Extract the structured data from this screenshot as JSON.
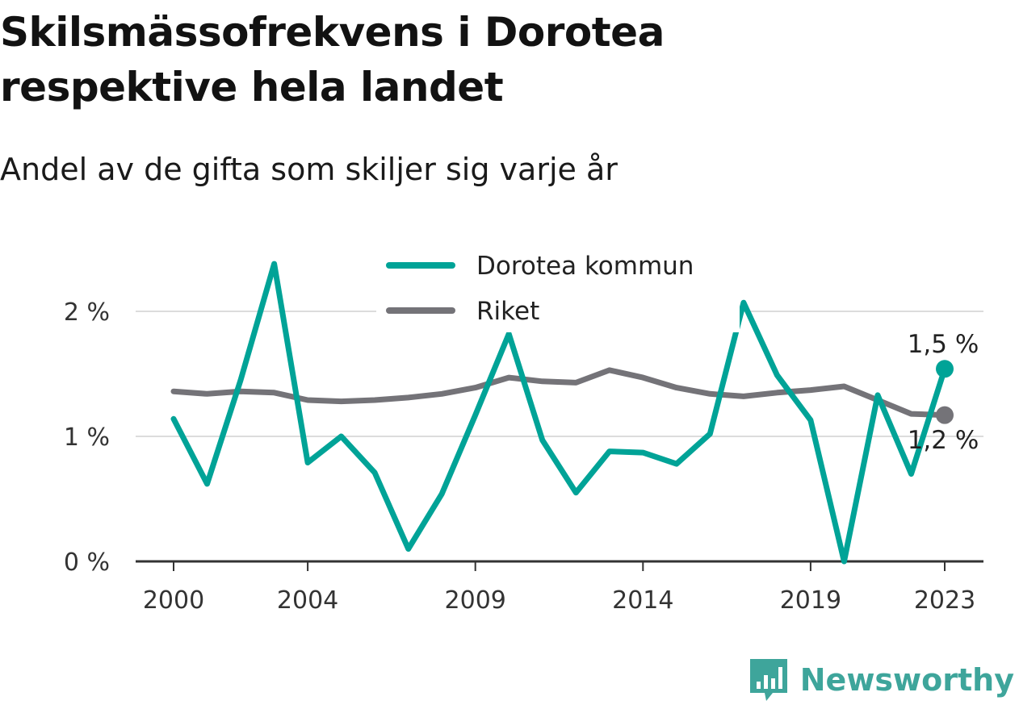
{
  "title": "Skilsmässofrekvens i Dorotea respektive hela landet",
  "subtitle": "Andel av de gifta som skiljer sig varje år",
  "brand": "Newsworthy",
  "colors": {
    "dorotea": "#00a397",
    "riket": "#747378",
    "grid": "#dcdcdc",
    "axis": "#333333",
    "brand": "#3ea59b"
  },
  "chart_data": {
    "type": "line",
    "title": "Skilsmässofrekvens i Dorotea respektive hela landet",
    "subtitle": "Andel av de gifta som skiljer sig varje år",
    "x": [
      2000,
      2001,
      2002,
      2003,
      2004,
      2005,
      2006,
      2007,
      2008,
      2009,
      2010,
      2011,
      2012,
      2013,
      2014,
      2015,
      2016,
      2017,
      2018,
      2019,
      2020,
      2021,
      2022,
      2023
    ],
    "x_ticks": [
      2000,
      2004,
      2009,
      2014,
      2019,
      2023
    ],
    "y_ticks": [
      0,
      1,
      2
    ],
    "y_tick_labels": [
      "0 %",
      "1 %",
      "2 %"
    ],
    "ylim": [
      0,
      2.5
    ],
    "grid": true,
    "legend": "top-center",
    "series": [
      {
        "name": "Dorotea kommun",
        "color": "#00a397",
        "values": [
          1.14,
          0.62,
          1.45,
          2.38,
          0.79,
          1.0,
          0.71,
          0.1,
          0.54,
          1.17,
          1.82,
          0.97,
          0.55,
          0.88,
          0.87,
          0.78,
          1.02,
          2.07,
          1.49,
          1.13,
          0.0,
          1.33,
          0.7,
          1.54
        ],
        "end_label": "1,5 %"
      },
      {
        "name": "Riket",
        "color": "#747378",
        "values": [
          1.36,
          1.34,
          1.36,
          1.35,
          1.29,
          1.28,
          1.29,
          1.31,
          1.34,
          1.39,
          1.47,
          1.44,
          1.43,
          1.53,
          1.47,
          1.39,
          1.34,
          1.32,
          1.35,
          1.37,
          1.4,
          1.29,
          1.18,
          1.17
        ],
        "end_label": "1,2 %"
      }
    ]
  }
}
